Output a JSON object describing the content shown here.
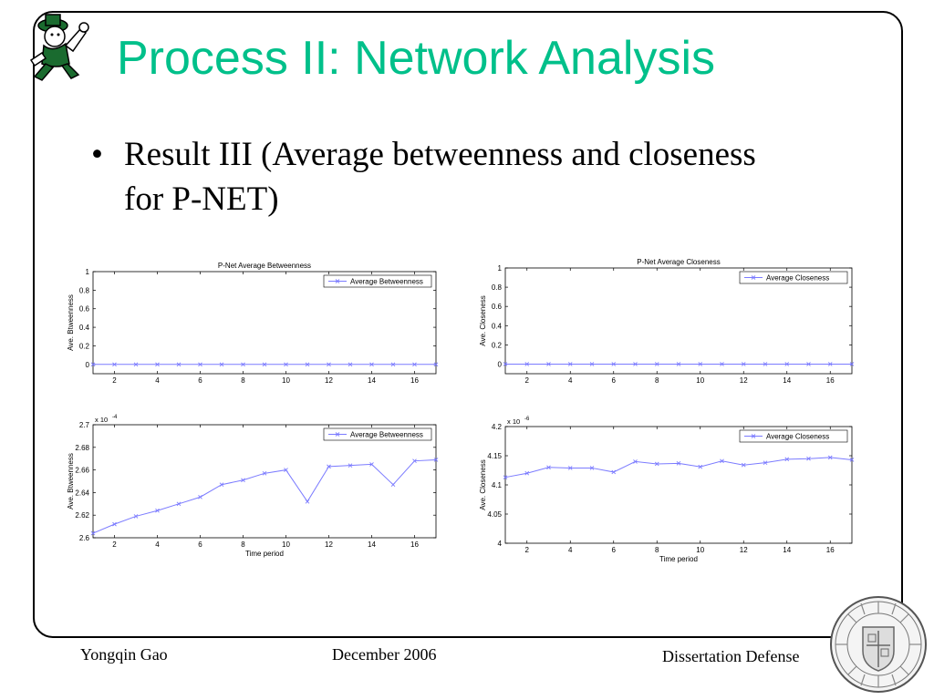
{
  "slide": {
    "title": "Process II: Network Analysis",
    "bullet": "Result III (Average betweenness and closeness for P-NET)",
    "bullet_marker": "•"
  },
  "footer": {
    "author": "Yongqin Gao",
    "date": "December 2006",
    "event": "Dissertation Defense"
  },
  "logos": {
    "mascot_icon": "leprechaun-mascot-icon",
    "seal_icon": "university-seal-icon"
  },
  "colors": {
    "title": "#00c08a",
    "series": "#7b7bff"
  },
  "chart_data": [
    {
      "type": "line",
      "title": "P-Net Average Betweenness",
      "xlabel": "",
      "ylabel": "Ave. Btweenness",
      "xlim": [
        1,
        17
      ],
      "ylim": [
        -0.1,
        1
      ],
      "xticks": [
        2,
        4,
        6,
        8,
        10,
        12,
        14,
        16
      ],
      "yticks": [
        0,
        0.2,
        0.4,
        0.6,
        0.8,
        1
      ],
      "ytick_labels": [
        "0",
        "0.2",
        "0.4",
        "0.6",
        "0.8",
        "1"
      ],
      "exponent_label": "",
      "legend": "top-right",
      "series": [
        {
          "name": "Average Betweenness",
          "x": [
            1,
            2,
            3,
            4,
            5,
            6,
            7,
            8,
            9,
            10,
            11,
            12,
            13,
            14,
            15,
            16,
            17
          ],
          "values": [
            0.00026,
            0.00026,
            0.00026,
            0.00026,
            0.00026,
            0.00026,
            0.00026,
            0.00026,
            0.00026,
            0.00026,
            0.00026,
            0.00026,
            0.00026,
            0.00026,
            0.00026,
            0.00026,
            0.00026
          ]
        }
      ]
    },
    {
      "type": "line",
      "title": "P-Net Average Closeness",
      "xlabel": "",
      "ylabel": "Ave. Closeness",
      "xlim": [
        1,
        17
      ],
      "ylim": [
        -0.1,
        1
      ],
      "xticks": [
        2,
        4,
        6,
        8,
        10,
        12,
        14,
        16
      ],
      "yticks": [
        0,
        0.2,
        0.4,
        0.6,
        0.8,
        1
      ],
      "ytick_labels": [
        "0",
        "0.2",
        "0.4",
        "0.6",
        "0.8",
        "1"
      ],
      "exponent_label": "",
      "legend": "top-right",
      "series": [
        {
          "name": "Average Closeness",
          "x": [
            1,
            2,
            3,
            4,
            5,
            6,
            7,
            8,
            9,
            10,
            11,
            12,
            13,
            14,
            15,
            16,
            17
          ],
          "values": [
            4.1e-06,
            4.1e-06,
            4.1e-06,
            4.1e-06,
            4.1e-06,
            4.1e-06,
            4.1e-06,
            4.1e-06,
            4.1e-06,
            4.1e-06,
            4.1e-06,
            4.1e-06,
            4.1e-06,
            4.1e-06,
            4.1e-06,
            4.1e-06,
            4.1e-06
          ]
        }
      ]
    },
    {
      "type": "line",
      "title": "",
      "xlabel": "Time period",
      "ylabel": "Ave. Btweenness",
      "xlim": [
        1,
        17
      ],
      "ylim": [
        2.6,
        2.7
      ],
      "xticks": [
        2,
        4,
        6,
        8,
        10,
        12,
        14,
        16
      ],
      "yticks": [
        2.6,
        2.62,
        2.64,
        2.66,
        2.68,
        2.7
      ],
      "ytick_labels": [
        "2.6",
        "2.62",
        "2.64",
        "2.66",
        "2.68",
        "2.7"
      ],
      "exponent_label": "x 10",
      "exponent_power": "-4",
      "legend": "top-right",
      "series": [
        {
          "name": "Average Betweenness",
          "x": [
            1,
            2,
            3,
            4,
            5,
            6,
            7,
            8,
            9,
            10,
            11,
            12,
            13,
            14,
            15,
            16,
            17
          ],
          "values": [
            2.604,
            2.612,
            2.619,
            2.624,
            2.63,
            2.636,
            2.647,
            2.651,
            2.657,
            2.66,
            2.632,
            2.663,
            2.664,
            2.665,
            2.647,
            2.668,
            2.669
          ]
        }
      ]
    },
    {
      "type": "line",
      "title": "",
      "xlabel": "Time period",
      "ylabel": "Ave. Closeness",
      "xlim": [
        1,
        17
      ],
      "ylim": [
        4,
        4.2
      ],
      "xticks": [
        2,
        4,
        6,
        8,
        10,
        12,
        14,
        16
      ],
      "yticks": [
        4,
        4.05,
        4.1,
        4.15,
        4.2
      ],
      "ytick_labels": [
        "4",
        "4.05",
        "4.1",
        "4.15",
        "4.2"
      ],
      "exponent_label": "x 10",
      "exponent_power": "-6",
      "legend": "top-right",
      "series": [
        {
          "name": "Average Closeness",
          "x": [
            1,
            2,
            3,
            4,
            5,
            6,
            7,
            8,
            9,
            10,
            11,
            12,
            13,
            14,
            15,
            16,
            17
          ],
          "values": [
            4.113,
            4.12,
            4.13,
            4.129,
            4.129,
            4.122,
            4.14,
            4.136,
            4.137,
            4.131,
            4.141,
            4.134,
            4.138,
            4.144,
            4.145,
            4.147,
            4.143
          ]
        }
      ]
    }
  ]
}
